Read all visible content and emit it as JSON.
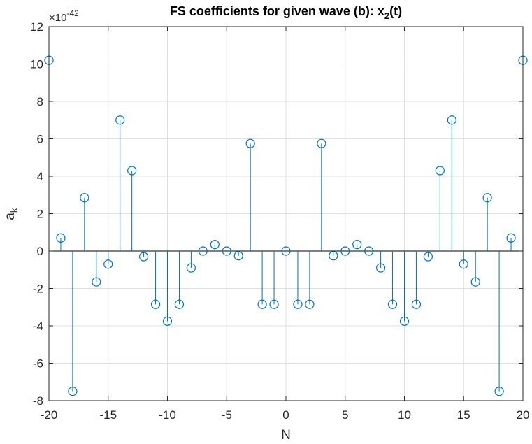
{
  "chart_data": {
    "type": "stem",
    "title": "FS coefficients for given wave (b): x",
    "title_sub": "2",
    "title_tail": "(t)",
    "xlabel": "N",
    "ylabel": "a",
    "ylabel_sub": "k",
    "exponent_label": "×10",
    "exponent_power": "-42",
    "xlim": [
      -20,
      20
    ],
    "ylim": [
      -8,
      12
    ],
    "xticks": [
      -20,
      -15,
      -10,
      -5,
      0,
      5,
      10,
      15,
      20
    ],
    "yticks": [
      -8,
      -6,
      -4,
      -2,
      0,
      2,
      4,
      6,
      8,
      10,
      12
    ],
    "grid": true,
    "series": [
      {
        "name": "a_k",
        "color": "#0072BD",
        "x": [
          -20,
          -19,
          -18,
          -17,
          -16,
          -15,
          -14,
          -13,
          -12,
          -11,
          -10,
          -9,
          -8,
          -7,
          -6,
          -5,
          -4,
          -3,
          -2,
          -1,
          0,
          1,
          2,
          3,
          4,
          5,
          6,
          7,
          8,
          9,
          10,
          11,
          12,
          13,
          14,
          15,
          16,
          17,
          18,
          19,
          20
        ],
        "values": [
          10.2,
          0.7,
          -7.5,
          2.85,
          -1.65,
          -0.7,
          7.0,
          4.3,
          -0.3,
          -2.85,
          -3.75,
          -2.85,
          -0.9,
          0.0,
          0.35,
          0.0,
          -0.25,
          5.75,
          -2.85,
          -2.85,
          0.0,
          -2.85,
          -2.85,
          5.75,
          -0.25,
          0.0,
          0.35,
          0.0,
          -0.9,
          -2.85,
          -3.75,
          -2.85,
          -0.3,
          4.3,
          7.0,
          -0.7,
          -1.65,
          2.85,
          -7.5,
          0.7,
          10.2
        ]
      }
    ]
  }
}
